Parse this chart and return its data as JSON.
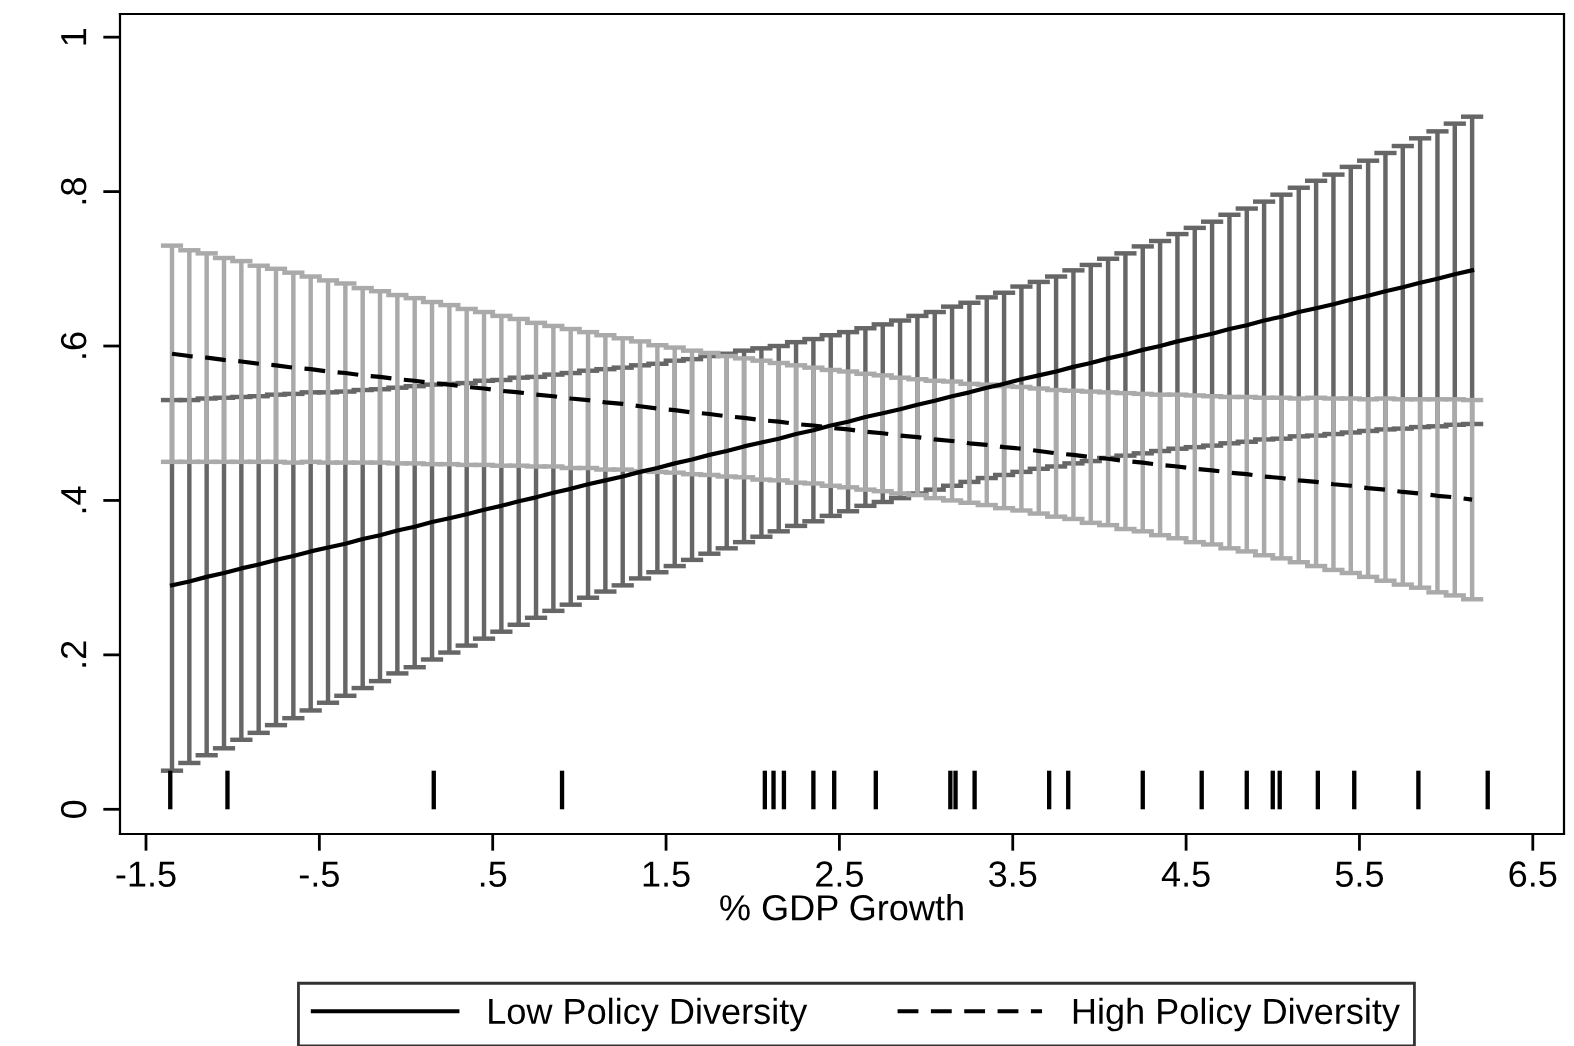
{
  "chart_data": {
    "type": "line",
    "xlabel": "% GDP Growth",
    "x": [
      -1.35,
      -1.25,
      -1.15,
      -1.05,
      -0.95,
      -0.85,
      -0.75,
      -0.65,
      -0.55,
      -0.45,
      -0.35,
      -0.25,
      -0.15,
      -0.05,
      0.05,
      0.15,
      0.25,
      0.35,
      0.45,
      0.55,
      0.65,
      0.75,
      0.85,
      0.95,
      1.05,
      1.15,
      1.25,
      1.35,
      1.45,
      1.55,
      1.65,
      1.75,
      1.85,
      1.95,
      2.05,
      2.15,
      2.25,
      2.35,
      2.45,
      2.55,
      2.65,
      2.75,
      2.85,
      2.95,
      3.05,
      3.15,
      3.25,
      3.35,
      3.45,
      3.55,
      3.65,
      3.75,
      3.85,
      3.95,
      4.05,
      4.15,
      4.25,
      4.35,
      4.45,
      4.55,
      4.65,
      4.75,
      4.85,
      4.95,
      5.05,
      5.15,
      5.25,
      5.35,
      5.45,
      5.55,
      5.65,
      5.75,
      5.85,
      5.95,
      6.05,
      6.15
    ],
    "series": [
      {
        "name": "Low Policy Diversity",
        "color": "#000000",
        "colors": [
          "#666666",
          "#666666",
          "#666666",
          "#666666",
          "#666666",
          "#666666",
          "#666666",
          "#666666",
          "#666666",
          "#666666",
          "#666666",
          "#666666",
          "#666666",
          "#666666",
          "#666666",
          "#666666",
          "#666666",
          "#666666",
          "#666666",
          "#666666",
          "#666666",
          "#666666",
          "#666666",
          "#666666",
          "#666666",
          "#666666",
          "#666666",
          "#666666",
          "#666666",
          "#666666",
          "#666666",
          "#666666",
          "#666666",
          "#666666",
          "#666666",
          "#666666",
          "#666666",
          "#666666",
          "#666666",
          "#666666",
          "#666666",
          "#666666",
          "#666666",
          "#666666",
          "#666666",
          "#666666",
          "#666666",
          "#666666",
          "#666666",
          "#666666",
          "#666666",
          "#666666",
          "#666666",
          "#666666",
          "#666666",
          "#666666",
          "#666666",
          "#666666",
          "#666666",
          "#666666",
          "#666666",
          "#666666",
          "#666666",
          "#666666",
          "#666666",
          "#666666",
          "#666666",
          "#666666",
          "#666666",
          "#666666",
          "#666666",
          "#666666",
          "#666666",
          "#666666",
          "#666666",
          "#666666"
        ],
        "line_style": "solid",
        "values": [
          0.29,
          0.295,
          0.301,
          0.306,
          0.312,
          0.317,
          0.323,
          0.328,
          0.334,
          0.339,
          0.344,
          0.35,
          0.355,
          0.361,
          0.366,
          0.372,
          0.377,
          0.382,
          0.388,
          0.393,
          0.399,
          0.404,
          0.41,
          0.415,
          0.421,
          0.426,
          0.431,
          0.437,
          0.442,
          0.448,
          0.453,
          0.459,
          0.464,
          0.47,
          0.475,
          0.48,
          0.486,
          0.491,
          0.497,
          0.502,
          0.508,
          0.513,
          0.518,
          0.524,
          0.529,
          0.535,
          0.54,
          0.546,
          0.551,
          0.557,
          0.562,
          0.567,
          0.573,
          0.578,
          0.584,
          0.589,
          0.595,
          0.6,
          0.606,
          0.611,
          0.616,
          0.622,
          0.627,
          0.633,
          0.638,
          0.644,
          0.649,
          0.654,
          0.66,
          0.665,
          0.671,
          0.676,
          0.682,
          0.687,
          0.693,
          0.698
        ],
        "errors": [
          0.24,
          0.235,
          0.231,
          0.227,
          0.222,
          0.218,
          0.214,
          0.21,
          0.206,
          0.201,
          0.197,
          0.193,
          0.189,
          0.185,
          0.182,
          0.178,
          0.174,
          0.17,
          0.167,
          0.163,
          0.16,
          0.156,
          0.153,
          0.15,
          0.147,
          0.144,
          0.141,
          0.138,
          0.135,
          0.133,
          0.13,
          0.128,
          0.126,
          0.124,
          0.122,
          0.12,
          0.119,
          0.118,
          0.117,
          0.116,
          0.115,
          0.115,
          0.115,
          0.115,
          0.115,
          0.116,
          0.116,
          0.117,
          0.118,
          0.12,
          0.121,
          0.123,
          0.125,
          0.127,
          0.129,
          0.131,
          0.134,
          0.136,
          0.139,
          0.142,
          0.145,
          0.148,
          0.151,
          0.154,
          0.158,
          0.161,
          0.165,
          0.168,
          0.172,
          0.175,
          0.179,
          0.183,
          0.187,
          0.191,
          0.195,
          0.199
        ]
      },
      {
        "name": "High Policy Diversity",
        "color": "#000000",
        "colors": [
          "#aaaaaa",
          "#aaaaaa",
          "#aaaaaa",
          "#aaaaaa",
          "#aaaaaa",
          "#aaaaaa",
          "#aaaaaa",
          "#aaaaaa",
          "#aaaaaa",
          "#aaaaaa",
          "#aaaaaa",
          "#aaaaaa",
          "#aaaaaa",
          "#aaaaaa",
          "#aaaaaa",
          "#aaaaaa",
          "#aaaaaa",
          "#aaaaaa",
          "#aaaaaa",
          "#aaaaaa",
          "#aaaaaa",
          "#aaaaaa",
          "#aaaaaa",
          "#aaaaaa",
          "#aaaaaa",
          "#aaaaaa",
          "#aaaaaa",
          "#aaaaaa",
          "#aaaaaa",
          "#aaaaaa",
          "#aaaaaa",
          "#aaaaaa",
          "#aaaaaa",
          "#aaaaaa",
          "#aaaaaa",
          "#aaaaaa",
          "#aaaaaa",
          "#aaaaaa",
          "#aaaaaa",
          "#aaaaaa",
          "#aaaaaa",
          "#aaaaaa",
          "#aaaaaa",
          "#aaaaaa",
          "#aaaaaa",
          "#aaaaaa",
          "#aaaaaa",
          "#aaaaaa",
          "#aaaaaa",
          "#aaaaaa",
          "#aaaaaa",
          "#aaaaaa",
          "#aaaaaa",
          "#aaaaaa",
          "#aaaaaa",
          "#aaaaaa",
          "#aaaaaa",
          "#aaaaaa",
          "#aaaaaa",
          "#aaaaaa",
          "#aaaaaa",
          "#aaaaaa",
          "#aaaaaa",
          "#aaaaaa",
          "#aaaaaa",
          "#aaaaaa",
          "#aaaaaa",
          "#aaaaaa",
          "#aaaaaa",
          "#aaaaaa",
          "#aaaaaa",
          "#aaaaaa",
          "#aaaaaa",
          "#aaaaaa",
          "#aaaaaa",
          "#aaaaaa"
        ],
        "line_style": "dashed",
        "values": [
          0.59,
          0.587,
          0.585,
          0.582,
          0.58,
          0.577,
          0.575,
          0.572,
          0.57,
          0.567,
          0.565,
          0.562,
          0.56,
          0.557,
          0.555,
          0.552,
          0.55,
          0.547,
          0.545,
          0.542,
          0.54,
          0.537,
          0.535,
          0.532,
          0.53,
          0.527,
          0.525,
          0.522,
          0.519,
          0.517,
          0.514,
          0.512,
          0.509,
          0.507,
          0.504,
          0.502,
          0.499,
          0.497,
          0.494,
          0.492,
          0.489,
          0.487,
          0.484,
          0.482,
          0.479,
          0.477,
          0.474,
          0.472,
          0.469,
          0.467,
          0.464,
          0.461,
          0.459,
          0.456,
          0.454,
          0.451,
          0.449,
          0.446,
          0.444,
          0.441,
          0.439,
          0.436,
          0.434,
          0.431,
          0.429,
          0.426,
          0.424,
          0.421,
          0.419,
          0.416,
          0.414,
          0.411,
          0.409,
          0.406,
          0.404,
          0.401
        ],
        "errors": [
          0.14,
          0.137,
          0.135,
          0.132,
          0.13,
          0.127,
          0.125,
          0.123,
          0.12,
          0.118,
          0.116,
          0.113,
          0.111,
          0.109,
          0.107,
          0.105,
          0.103,
          0.101,
          0.099,
          0.097,
          0.095,
          0.093,
          0.091,
          0.09,
          0.088,
          0.087,
          0.085,
          0.084,
          0.082,
          0.081,
          0.08,
          0.079,
          0.078,
          0.077,
          0.077,
          0.076,
          0.076,
          0.075,
          0.075,
          0.075,
          0.075,
          0.075,
          0.075,
          0.075,
          0.076,
          0.077,
          0.077,
          0.078,
          0.079,
          0.08,
          0.081,
          0.082,
          0.083,
          0.085,
          0.086,
          0.088,
          0.089,
          0.091,
          0.093,
          0.095,
          0.096,
          0.098,
          0.1,
          0.102,
          0.104,
          0.106,
          0.109,
          0.111,
          0.113,
          0.115,
          0.118,
          0.12,
          0.122,
          0.125,
          0.127,
          0.129
        ]
      },
      {
        "type": "bar",
        "color": "#000000",
        "x": [
          -1.36,
          -1.03,
          0.16,
          0.9,
          2.07,
          2.12,
          2.18,
          2.35,
          2.47,
          2.71,
          3.14,
          3.17,
          3.28,
          3.71,
          3.82,
          4.25,
          4.59,
          4.85,
          5.0,
          5.04,
          5.26,
          5.47,
          5.84,
          6.24
        ],
        "values": [
          0.05,
          0.05,
          0.05,
          0.05,
          0.05,
          0.05,
          0.05,
          0.05,
          0.05,
          0.05,
          0.05,
          0.05,
          0.05,
          0.05,
          0.05,
          0.05,
          0.05,
          0.05,
          0.05,
          0.05,
          0.05,
          0.05,
          0.05,
          0.05
        ]
      }
    ],
    "xlim": [
      -1.65,
      6.68
    ],
    "ylim": [
      -0.032,
      1.03
    ],
    "xticks": [
      -1.5,
      {
        "value": -0.5,
        "label": "-.5"
      },
      {
        "value": 0.5,
        "label": ".5"
      },
      1.5,
      2.5,
      3.5,
      4.5,
      5.5,
      6.5
    ],
    "yticks": [
      0,
      {
        "value": 0.2,
        "label": ".2"
      },
      {
        "value": 0.4,
        "label": ".4"
      },
      {
        "value": 0.6,
        "label": ".6"
      },
      {
        "value": 0.8,
        "label": ".8"
      },
      1
    ],
    "grid": false,
    "legend": "bottom"
  }
}
